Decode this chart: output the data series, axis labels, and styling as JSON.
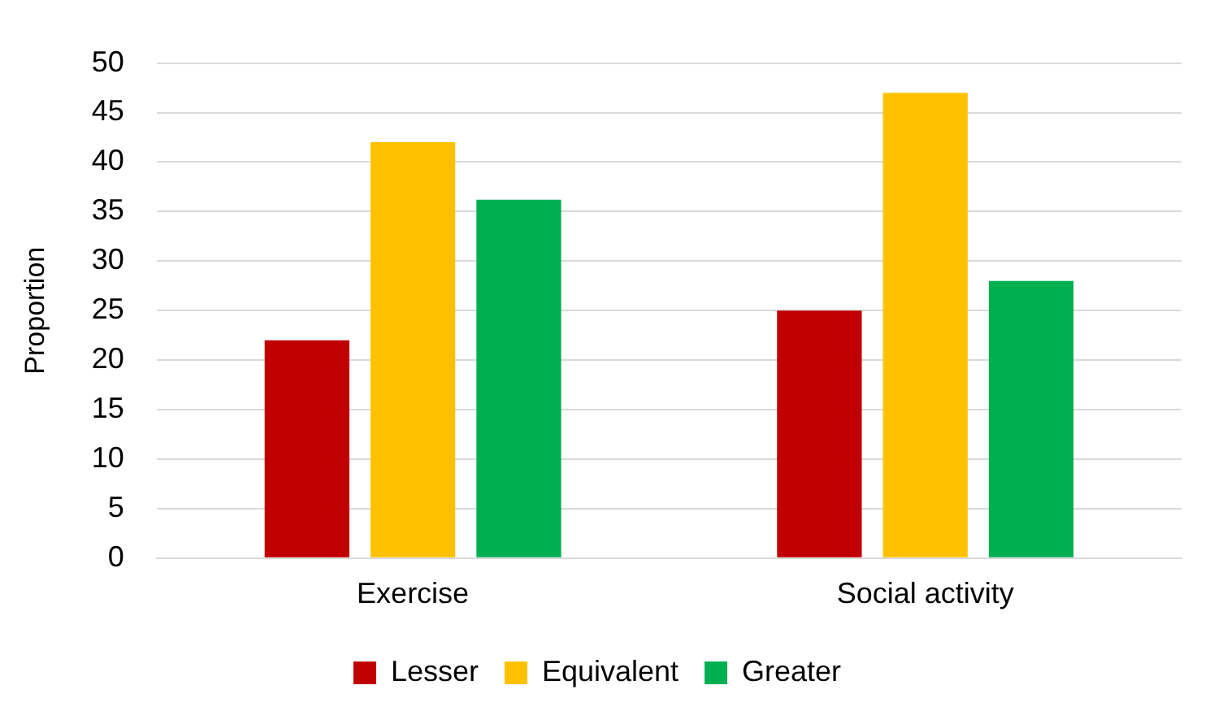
{
  "chart_data": {
    "type": "bar",
    "ylabel": "Proportion",
    "categories": [
      "Exercise",
      "Social activity"
    ],
    "series": [
      {
        "name": "Lesser",
        "color": "#c00000",
        "values": [
          22,
          25
        ]
      },
      {
        "name": "Equivalent",
        "color": "#ffc000",
        "values": [
          42,
          47
        ]
      },
      {
        "name": "Greater",
        "color": "#00b050",
        "values": [
          36.2,
          28
        ]
      }
    ],
    "ylim": [
      0,
      50
    ],
    "yticks": [
      0,
      5,
      10,
      15,
      20,
      25,
      30,
      35,
      40,
      45,
      50
    ],
    "grid": "y",
    "legend": "bottom"
  }
}
